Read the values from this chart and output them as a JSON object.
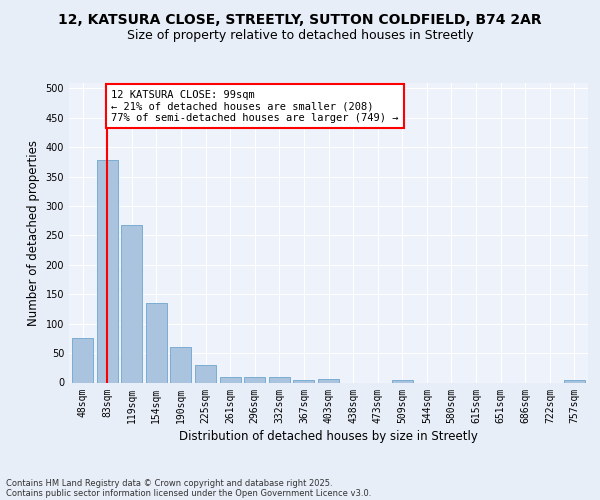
{
  "title_line1": "12, KATSURA CLOSE, STREETLY, SUTTON COLDFIELD, B74 2AR",
  "title_line2": "Size of property relative to detached houses in Streetly",
  "xlabel": "Distribution of detached houses by size in Streetly",
  "ylabel": "Number of detached properties",
  "categories": [
    "48sqm",
    "83sqm",
    "119sqm",
    "154sqm",
    "190sqm",
    "225sqm",
    "261sqm",
    "296sqm",
    "332sqm",
    "367sqm",
    "403sqm",
    "438sqm",
    "473sqm",
    "509sqm",
    "544sqm",
    "580sqm",
    "615sqm",
    "651sqm",
    "686sqm",
    "722sqm",
    "757sqm"
  ],
  "values": [
    75,
    378,
    267,
    136,
    61,
    30,
    10,
    10,
    10,
    5,
    6,
    0,
    0,
    4,
    0,
    0,
    0,
    0,
    0,
    0,
    4
  ],
  "bar_color": "#aac4e0",
  "bar_edge_color": "#7aadd4",
  "vline_x": 1,
  "vline_color": "red",
  "annotation_title": "12 KATSURA CLOSE: 99sqm",
  "annotation_line2": "← 21% of detached houses are smaller (208)",
  "annotation_line3": "77% of semi-detached houses are larger (749) →",
  "annotation_box_color": "red",
  "ylim": [
    0,
    510
  ],
  "yticks": [
    0,
    50,
    100,
    150,
    200,
    250,
    300,
    350,
    400,
    450,
    500
  ],
  "bg_color": "#e8eef8",
  "plot_bg_color": "#eef2fa",
  "footer_line1": "Contains HM Land Registry data © Crown copyright and database right 2025.",
  "footer_line2": "Contains public sector information licensed under the Open Government Licence v3.0.",
  "title_fontsize": 10,
  "subtitle_fontsize": 9,
  "tick_fontsize": 7,
  "label_fontsize": 8.5,
  "footer_fontsize": 6,
  "annot_fontsize": 7.5
}
